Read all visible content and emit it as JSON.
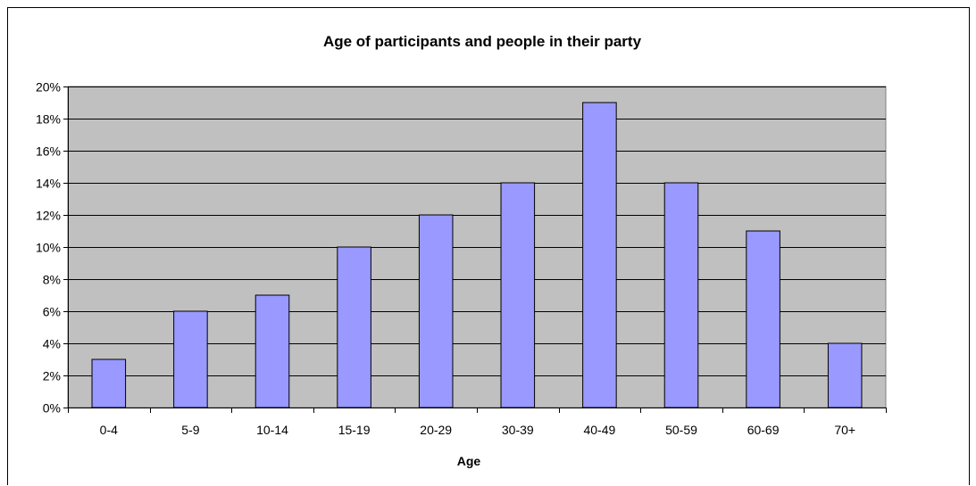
{
  "chart_data": {
    "type": "bar",
    "title": "Age of participants and people in their party",
    "xlabel": "Age",
    "ylabel": "",
    "categories": [
      "0-4",
      "5-9",
      "10-14",
      "15-19",
      "20-29",
      "30-39",
      "40-49",
      "50-59",
      "60-69",
      "70+"
    ],
    "values": [
      3,
      6,
      7,
      10,
      12,
      14,
      19,
      14,
      11,
      4
    ],
    "unit": "%",
    "ylim": [
      0,
      20
    ],
    "ytick_step": 2,
    "grid": true,
    "legend": "none",
    "colors": {
      "plot_background": "#c0c0c0",
      "bar_fill": "#9999ff",
      "bar_stroke": "#000000",
      "gridline": "#000000"
    }
  }
}
